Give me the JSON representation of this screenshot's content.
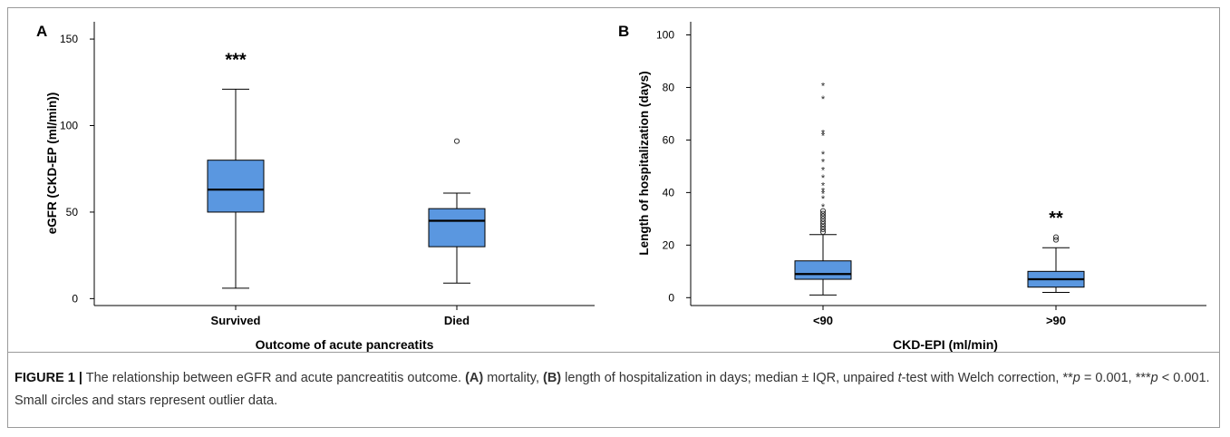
{
  "chart_data": [
    {
      "type": "box",
      "panel_label": "A",
      "xlabel": "Outcome of acute pancreatits",
      "ylabel": "eGFR (CKD-EP (ml/min))",
      "ylim": [
        -4,
        160
      ],
      "yticks": [
        0,
        50,
        100,
        150
      ],
      "categories": [
        "Survived",
        "Died"
      ],
      "boxes": [
        {
          "category": "Survived",
          "whisker_low": 6,
          "q1": 50,
          "median": 63,
          "q3": 80,
          "whisker_high": 121,
          "outliers_circle": [],
          "outliers_star": [],
          "significance": "***"
        },
        {
          "category": "Died",
          "whisker_low": 9,
          "q1": 30,
          "median": 45,
          "q3": 52,
          "whisker_high": 61,
          "outliers_circle": [
            91
          ],
          "outliers_star": [],
          "significance": ""
        }
      ],
      "box_color": "#5A97E0"
    },
    {
      "type": "box",
      "panel_label": "B",
      "xlabel": "CKD-EPI (ml/min)",
      "ylabel": "Length of hospitalization (days)",
      "ylim": [
        -3,
        105
      ],
      "yticks": [
        0,
        20,
        40,
        60,
        80,
        100
      ],
      "categories": [
        "<90",
        ">90"
      ],
      "boxes": [
        {
          "category": "<90",
          "whisker_low": 1,
          "q1": 7,
          "median": 9,
          "q3": 14,
          "whisker_high": 24,
          "outliers_circle": [
            25,
            26,
            27,
            28,
            29,
            30,
            31,
            32,
            33
          ],
          "outliers_star": [
            35,
            38,
            40,
            41,
            43,
            46,
            49,
            52,
            55,
            62,
            63,
            76,
            81
          ],
          "significance": ""
        },
        {
          "category": ">90",
          "whisker_low": 2,
          "q1": 4,
          "median": 7,
          "q3": 10,
          "whisker_high": 19,
          "outliers_circle": [
            22,
            23
          ],
          "outliers_star": [],
          "significance": "**"
        }
      ],
      "box_color": "#5A97E0"
    }
  ],
  "caption": {
    "label": "FIGURE 1 |",
    "seg1": " The relationship between eGFR and acute pancreatitis outcome. ",
    "a_ref": "(A)",
    "seg2": " mortality, ",
    "b_ref": "(B)",
    "seg3": " length of hospitalization in days; median ± IQR, unpaired ",
    "t_italic": "t",
    "seg4": "-test with Welch correction, **",
    "p1_italic": "p",
    "seg5": " = 0.001, ***",
    "p2_italic": "p",
    "seg6": " < 0.001. Small circles and stars represent outlier data."
  }
}
